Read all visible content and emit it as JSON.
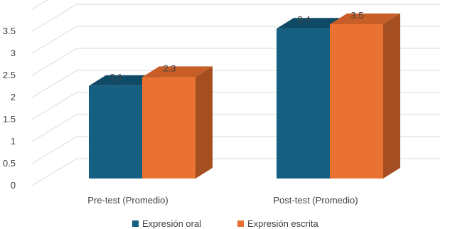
{
  "chart_data": {
    "type": "bar",
    "style": "3d-clustered-column",
    "title": "",
    "xlabel": "",
    "ylabel": "",
    "ylim": [
      0,
      4
    ],
    "yticks": [
      "0",
      "0.5",
      "1",
      "1.5",
      "2",
      "2.5",
      "3",
      "3.5"
    ],
    "grid": true,
    "legend": "bottom",
    "categories": [
      "Pre-test (Promedio)",
      "Post-test (Promedio)"
    ],
    "series": [
      {
        "name": "Expresión oral",
        "values": [
          2.1,
          3.4
        ],
        "labels": [
          "2.1",
          "3.4"
        ],
        "color": "#155F82"
      },
      {
        "name": "Expresión escrita",
        "values": [
          2.3,
          3.5
        ],
        "labels": [
          "2.3",
          "3.5"
        ],
        "color": "#E97132"
      }
    ],
    "colors": {
      "oral_front": "#155F82",
      "oral_side": "#0E4560",
      "oral_top": "#0F4A67",
      "escrita_front": "#E97132",
      "escrita_side": "#A44E22",
      "escrita_top": "#C75E27",
      "grid": "#D9D9D9",
      "text": "#404040"
    }
  }
}
